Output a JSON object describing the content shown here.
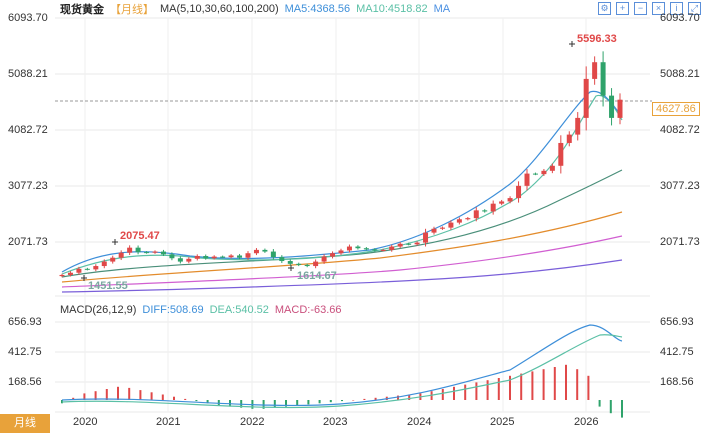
{
  "header": {
    "title": "现货黄金",
    "period": "【月线】",
    "ma_spec": "MA(5,10,30,60,100,200)",
    "ma5": "MA5:4368.56",
    "ma10": "MA10:4518.82",
    "ma_button": "MA"
  },
  "toolbar_icons": [
    "settings-icon",
    "zoom-icon",
    "zoom-out-icon",
    "close-icon",
    "info-icon",
    "expand-icon"
  ],
  "price_axis": {
    "labels_right": [
      "6093.70",
      "5088.21",
      "4082.72",
      "3077.23",
      "2071.73"
    ],
    "labels_left": [
      "6093.70",
      "5088.21",
      "4082.72",
      "3077.23",
      "2071.73"
    ]
  },
  "current_price": "4627.86",
  "annotations": {
    "high": "5596.33",
    "mid_high": "2075.47",
    "low1": "1451.55",
    "low2": "1614.67"
  },
  "macd": {
    "spec": "MACD(26,12,9)",
    "diff": "DIFF:508.69",
    "dea": "DEA:540.52",
    "macd": "MACD:-63.66",
    "labels_right": [
      "656.93",
      "412.75",
      "168.56"
    ],
    "labels_left": [
      "656.93",
      "412.75",
      "168.56"
    ]
  },
  "period_tab": "月线",
  "years": [
    "2020",
    "2021",
    "2022",
    "2023",
    "2024",
    "2025",
    "2026"
  ],
  "colors": {
    "up": "#e04848",
    "down": "#2fa36b",
    "accent": "#e8a23a"
  },
  "chart_data": {
    "type": "line",
    "x": [
      "2019-09",
      "2020-01",
      "2020-07",
      "2021-01",
      "2021-07",
      "2022-01",
      "2022-07",
      "2023-01",
      "2023-07",
      "2024-01",
      "2024-07",
      "2025-01",
      "2025-07",
      "2026-01",
      "2026-04"
    ],
    "series": [
      {
        "name": "MA5",
        "values": [
          1480,
          1570,
          1860,
          1880,
          1790,
          1820,
          1750,
          1820,
          1940,
          2030,
          2380,
          2700,
          3320,
          4700,
          4368.56
        ]
      },
      {
        "name": "MA10",
        "values": [
          1450,
          1520,
          1720,
          1820,
          1820,
          1800,
          1790,
          1800,
          1900,
          1980,
          2230,
          2540,
          3050,
          4350,
          4518.82
        ]
      }
    ],
    "ylim": [
      1400,
      6093.7
    ]
  }
}
